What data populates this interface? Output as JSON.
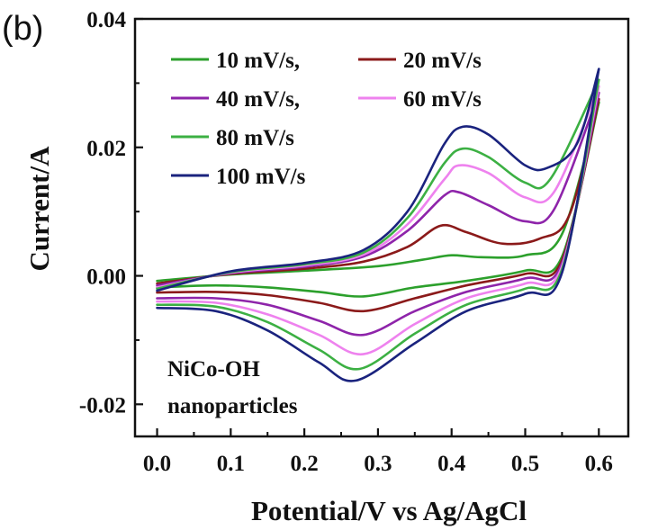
{
  "chart_data": {
    "type": "line",
    "panel_label": "(b)",
    "xlabel": "Potential/V vs Ag/AgCl",
    "ylabel": "Current/A",
    "xlim": [
      -0.03,
      0.64
    ],
    "ylim": [
      -0.025,
      0.04
    ],
    "x_ticks": [
      0.0,
      0.1,
      0.2,
      0.3,
      0.4,
      0.5,
      0.6
    ],
    "x_tick_labels": [
      "0.0",
      "0.1",
      "0.2",
      "0.3",
      "0.4",
      "0.5",
      "0.6"
    ],
    "y_ticks": [
      -0.02,
      0.0,
      0.02,
      0.04
    ],
    "y_tick_labels": [
      "-0.02",
      "0.00",
      "0.02",
      "0.04"
    ],
    "grid": false,
    "legend": {
      "placement": "top-left",
      "entries": [
        {
          "label": "10 mV/s,",
          "color": "#2ca02c"
        },
        {
          "label": "20 mV/s",
          "color": "#8b1a1a"
        },
        {
          "label": "40 mV/s,",
          "color": "#8e24aa"
        },
        {
          "label": "60 mV/s",
          "color": "#ee82ee"
        },
        {
          "label": "80 mV/s",
          "color": "#3cb043"
        },
        {
          "label": "100 mV/s",
          "color": "#1a237e"
        }
      ]
    },
    "annotation": [
      "NiCo-OH",
      "nanoparticles"
    ],
    "series": [
      {
        "color": "#2ca02c",
        "anodic": [
          [
            0.0,
            -0.0008
          ],
          [
            0.1,
            0.0002
          ],
          [
            0.2,
            0.0008
          ],
          [
            0.3,
            0.0015
          ],
          [
            0.36,
            0.0025
          ],
          [
            0.4,
            0.0032
          ],
          [
            0.44,
            0.0029
          ],
          [
            0.5,
            0.0032
          ],
          [
            0.55,
            0.0065
          ],
          [
            0.6,
            0.027
          ]
        ],
        "cathodic": [
          [
            0.6,
            0.027
          ],
          [
            0.55,
            0.003
          ],
          [
            0.5,
            0.0008
          ],
          [
            0.42,
            -0.0008
          ],
          [
            0.35,
            -0.0018
          ],
          [
            0.28,
            -0.0032
          ],
          [
            0.22,
            -0.0025
          ],
          [
            0.15,
            -0.0018
          ],
          [
            0.08,
            -0.0015
          ],
          [
            0.0,
            -0.0018
          ]
        ]
      },
      {
        "color": "#8b1a1a",
        "anodic": [
          [
            0.0,
            -0.0012
          ],
          [
            0.1,
            0.0003
          ],
          [
            0.2,
            0.0011
          ],
          [
            0.28,
            0.0022
          ],
          [
            0.34,
            0.0045
          ],
          [
            0.385,
            0.0078
          ],
          [
            0.42,
            0.0068
          ],
          [
            0.47,
            0.005
          ],
          [
            0.52,
            0.0058
          ],
          [
            0.56,
            0.0095
          ],
          [
            0.6,
            0.0275
          ]
        ],
        "cathodic": [
          [
            0.6,
            0.0275
          ],
          [
            0.55,
            0.0025
          ],
          [
            0.5,
            0.0003
          ],
          [
            0.42,
            -0.0015
          ],
          [
            0.35,
            -0.0035
          ],
          [
            0.28,
            -0.0055
          ],
          [
            0.22,
            -0.0042
          ],
          [
            0.15,
            -0.003
          ],
          [
            0.08,
            -0.0025
          ],
          [
            0.0,
            -0.0026
          ]
        ]
      },
      {
        "color": "#8e24aa",
        "anodic": [
          [
            0.0,
            -0.0015
          ],
          [
            0.1,
            0.0004
          ],
          [
            0.2,
            0.0014
          ],
          [
            0.28,
            0.003
          ],
          [
            0.34,
            0.007
          ],
          [
            0.39,
            0.0125
          ],
          [
            0.41,
            0.013
          ],
          [
            0.45,
            0.011
          ],
          [
            0.5,
            0.0085
          ],
          [
            0.54,
            0.0105
          ],
          [
            0.6,
            0.0285
          ]
        ],
        "cathodic": [
          [
            0.6,
            0.0285
          ],
          [
            0.55,
            0.002
          ],
          [
            0.5,
            -0.0004
          ],
          [
            0.42,
            -0.0025
          ],
          [
            0.35,
            -0.0055
          ],
          [
            0.28,
            -0.0092
          ],
          [
            0.22,
            -0.007
          ],
          [
            0.15,
            -0.0045
          ],
          [
            0.08,
            -0.0035
          ],
          [
            0.0,
            -0.0035
          ]
        ]
      },
      {
        "color": "#ee82ee",
        "anodic": [
          [
            0.0,
            -0.0018
          ],
          [
            0.1,
            0.0005
          ],
          [
            0.2,
            0.0016
          ],
          [
            0.28,
            0.0033
          ],
          [
            0.34,
            0.008
          ],
          [
            0.39,
            0.015
          ],
          [
            0.41,
            0.0172
          ],
          [
            0.45,
            0.016
          ],
          [
            0.5,
            0.0122
          ],
          [
            0.54,
            0.0132
          ],
          [
            0.6,
            0.0295
          ]
        ],
        "cathodic": [
          [
            0.6,
            0.0295
          ],
          [
            0.55,
            0.0015
          ],
          [
            0.5,
            -0.0012
          ],
          [
            0.42,
            -0.0035
          ],
          [
            0.35,
            -0.0075
          ],
          [
            0.28,
            -0.0122
          ],
          [
            0.22,
            -0.0092
          ],
          [
            0.15,
            -0.006
          ],
          [
            0.08,
            -0.0042
          ],
          [
            0.0,
            -0.004
          ]
        ]
      },
      {
        "color": "#3cb043",
        "anodic": [
          [
            0.0,
            -0.002
          ],
          [
            0.1,
            0.0006
          ],
          [
            0.2,
            0.0018
          ],
          [
            0.28,
            0.0036
          ],
          [
            0.34,
            0.009
          ],
          [
            0.39,
            0.0175
          ],
          [
            0.415,
            0.0198
          ],
          [
            0.45,
            0.0185
          ],
          [
            0.5,
            0.0145
          ],
          [
            0.535,
            0.0152
          ],
          [
            0.6,
            0.0305
          ]
        ],
        "cathodic": [
          [
            0.6,
            0.0305
          ],
          [
            0.55,
            0.001
          ],
          [
            0.5,
            -0.002
          ],
          [
            0.42,
            -0.0045
          ],
          [
            0.35,
            -0.009
          ],
          [
            0.275,
            -0.0145
          ],
          [
            0.22,
            -0.0115
          ],
          [
            0.15,
            -0.0072
          ],
          [
            0.08,
            -0.0048
          ],
          [
            0.0,
            -0.0045
          ]
        ]
      },
      {
        "color": "#1a237e",
        "anodic": [
          [
            0.0,
            -0.0023
          ],
          [
            0.1,
            0.0007
          ],
          [
            0.2,
            0.002
          ],
          [
            0.28,
            0.004
          ],
          [
            0.34,
            0.01
          ],
          [
            0.39,
            0.0205
          ],
          [
            0.415,
            0.0232
          ],
          [
            0.45,
            0.022
          ],
          [
            0.5,
            0.0172
          ],
          [
            0.53,
            0.0168
          ],
          [
            0.57,
            0.0205
          ],
          [
            0.6,
            0.0322
          ]
        ],
        "cathodic": [
          [
            0.6,
            0.0322
          ],
          [
            0.55,
            0.0005
          ],
          [
            0.5,
            -0.0028
          ],
          [
            0.42,
            -0.0055
          ],
          [
            0.35,
            -0.0105
          ],
          [
            0.27,
            -0.0163
          ],
          [
            0.22,
            -0.0135
          ],
          [
            0.15,
            -0.0085
          ],
          [
            0.08,
            -0.0055
          ],
          [
            0.0,
            -0.005
          ]
        ]
      }
    ]
  }
}
